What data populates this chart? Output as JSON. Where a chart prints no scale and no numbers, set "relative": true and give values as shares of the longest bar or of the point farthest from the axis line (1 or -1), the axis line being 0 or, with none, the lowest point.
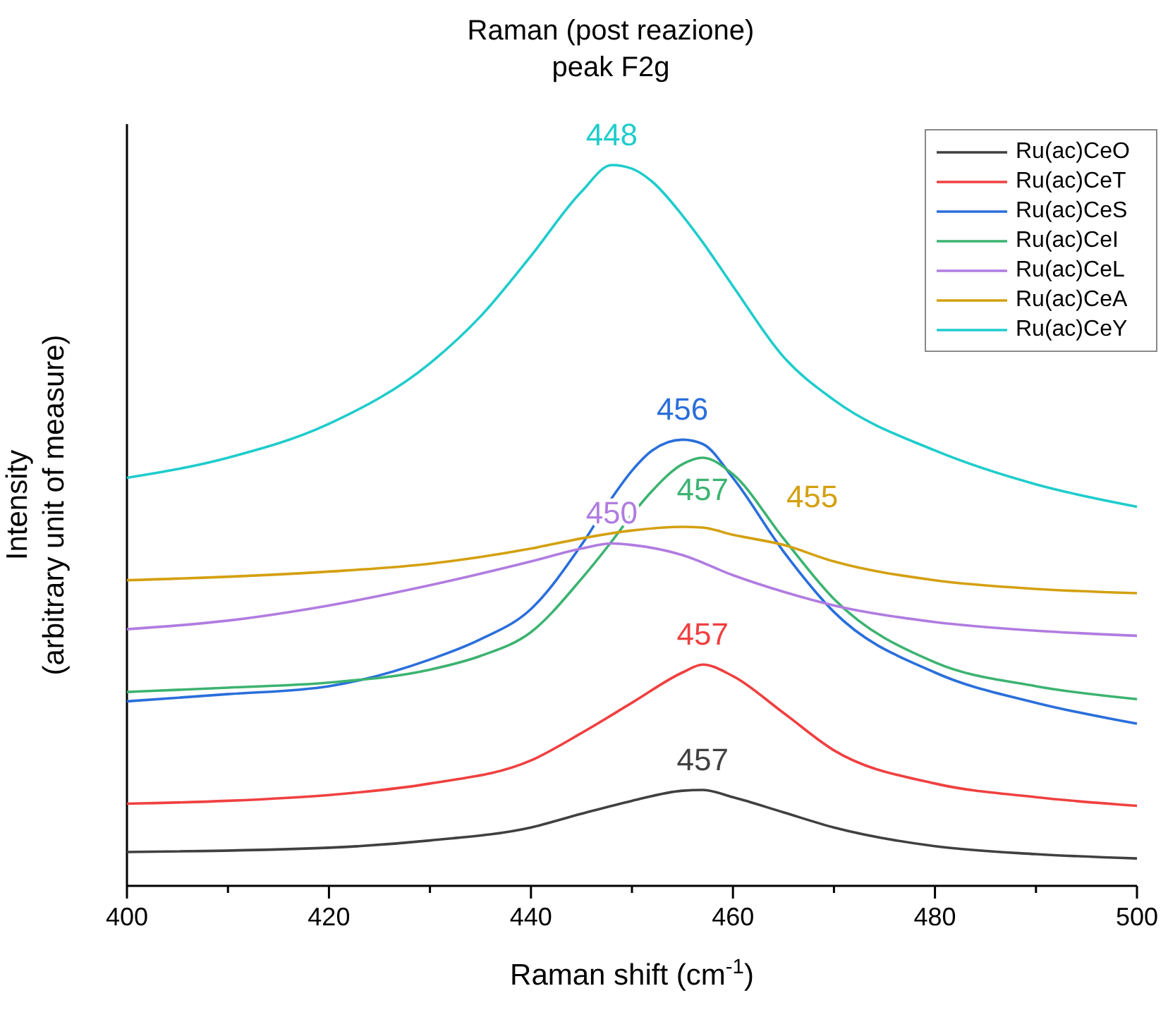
{
  "chart_data": {
    "type": "line",
    "relative": true,
    "title": "Raman (post reazione)",
    "subtitle": "peak F2g",
    "xlabel": "Raman shift (cm$^{-1}$)",
    "ylabel": "Intensity\n(arbitrary unit of measure)",
    "xlim": [
      400,
      500
    ],
    "xticks": [
      400,
      {
        "value": 410,
        "label": null
      },
      420,
      {
        "value": 430,
        "label": null
      },
      440,
      {
        "value": 450,
        "label": null
      },
      460,
      {
        "value": 470,
        "label": null
      },
      480,
      {
        "value": 490,
        "label": null
      },
      500
    ],
    "legend": "top right",
    "grid": false,
    "marker": "none",
    "line_style": "solid",
    "series": [
      {
        "name": "Ru(ac)CeO",
        "color": "#404040",
        "x": [
          400,
          420,
          430,
          440,
          445,
          450,
          455,
          457,
          460,
          465,
          470,
          480,
          490,
          500
        ],
        "values": [
          0.047,
          0.053,
          0.063,
          0.081,
          0.1,
          0.118,
          0.132,
          0.133,
          0.123,
          0.102,
          0.081,
          0.055,
          0.044,
          0.038
        ]
      },
      {
        "name": "Ru(ac)CeT",
        "color": "#f04040",
        "x": [
          400,
          410,
          420,
          430,
          440,
          445,
          450,
          455,
          457,
          460,
          465,
          470,
          480,
          490,
          500
        ],
        "values": [
          0.114,
          0.118,
          0.126,
          0.142,
          0.174,
          0.212,
          0.254,
          0.296,
          0.307,
          0.291,
          0.24,
          0.188,
          0.142,
          0.123,
          0.111
        ]
      },
      {
        "name": "Ru(ac)CeS",
        "color": "#2a6fdb",
        "x": [
          400,
          410,
          420,
          430,
          435,
          440,
          445,
          448,
          450,
          452,
          455,
          457,
          460,
          465,
          470,
          480,
          490,
          500
        ],
        "values": [
          0.256,
          0.266,
          0.277,
          0.314,
          0.342,
          0.384,
          0.473,
          0.538,
          0.576,
          0.604,
          0.619,
          0.613,
          0.566,
          0.464,
          0.38,
          0.296,
          0.254,
          0.225
        ]
      },
      {
        "name": "Ru(ac)CeI",
        "color": "#3cb371",
        "x": [
          400,
          410,
          420,
          430,
          435,
          440,
          445,
          448,
          450,
          452,
          455,
          457,
          460,
          465,
          470,
          480,
          490,
          500
        ],
        "values": [
          0.269,
          0.275,
          0.282,
          0.3,
          0.319,
          0.352,
          0.426,
          0.478,
          0.515,
          0.548,
          0.585,
          0.594,
          0.571,
          0.482,
          0.398,
          0.31,
          0.277,
          0.259
        ]
      },
      {
        "name": "Ru(ac)CeL",
        "color": "#b07ce0",
        "x": [
          400,
          410,
          420,
          430,
          440,
          445,
          448,
          450,
          455,
          460,
          465,
          470,
          480,
          490,
          500
        ],
        "values": [
          0.356,
          0.368,
          0.389,
          0.417,
          0.45,
          0.468,
          0.475,
          0.473,
          0.459,
          0.431,
          0.408,
          0.389,
          0.366,
          0.354,
          0.347
        ]
      },
      {
        "name": "Ru(ac)CeA",
        "color": "#d4a010",
        "x": [
          400,
          420,
          430,
          440,
          445,
          450,
          455,
          457,
          460,
          465,
          470,
          480,
          490,
          500
        ],
        "values": [
          0.424,
          0.436,
          0.447,
          0.468,
          0.482,
          0.493,
          0.498,
          0.497,
          0.487,
          0.473,
          0.45,
          0.424,
          0.412,
          0.406
        ]
      },
      {
        "name": "Ru(ac)CeY",
        "color": "#20cccc",
        "x": [
          400,
          410,
          420,
          430,
          435,
          440,
          445,
          448,
          450,
          452,
          455,
          457,
          460,
          465,
          470,
          480,
          490,
          500
        ],
        "values": [
          0.566,
          0.594,
          0.641,
          0.725,
          0.79,
          0.874,
          0.963,
          1,
          0.995,
          0.977,
          0.93,
          0.893,
          0.832,
          0.734,
          0.674,
          0.604,
          0.557,
          0.526
        ]
      }
    ],
    "annotations": [
      "457",
      "457",
      "456",
      "457",
      "450",
      "455",
      "448"
    ]
  }
}
